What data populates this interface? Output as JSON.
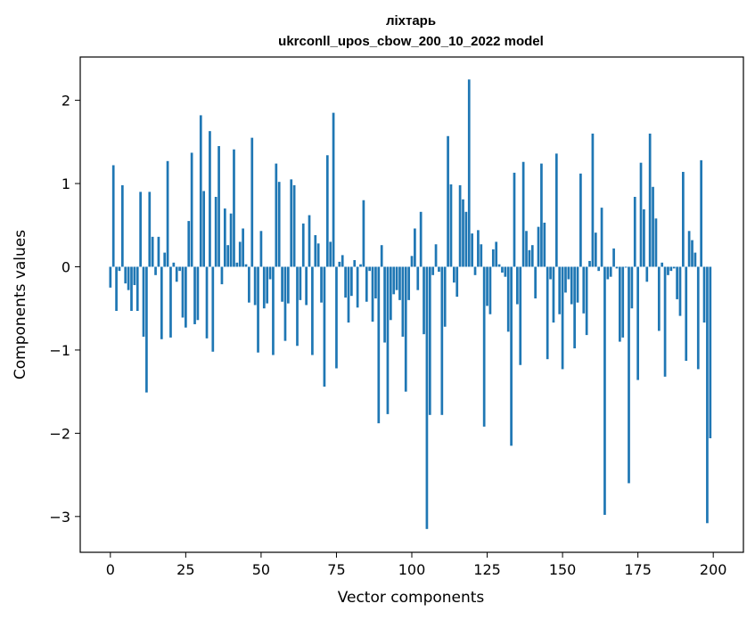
{
  "chart_data": {
    "type": "bar",
    "title": "ліхтарь",
    "subtitle": "ukrconll_upos_cbow_200_10_2022 model",
    "xlabel": "Vector components",
    "ylabel": "Components values",
    "xlim": [
      -10,
      210
    ],
    "ylim": [
      -3.43,
      2.52
    ],
    "xticks": [
      0,
      25,
      50,
      75,
      100,
      125,
      150,
      175,
      200
    ],
    "yticks": [
      -3,
      -2,
      -1,
      0,
      1,
      2
    ],
    "ytick_labels": [
      "−3",
      "−2",
      "−1",
      "0",
      "1",
      "2"
    ],
    "grid": false,
    "bar_color": "#1f77b4",
    "x": [
      0,
      1,
      2,
      3,
      4,
      5,
      6,
      7,
      8,
      9,
      10,
      11,
      12,
      13,
      14,
      15,
      16,
      17,
      18,
      19,
      20,
      21,
      22,
      23,
      24,
      25,
      26,
      27,
      28,
      29,
      30,
      31,
      32,
      33,
      34,
      35,
      36,
      37,
      38,
      39,
      40,
      41,
      42,
      43,
      44,
      45,
      46,
      47,
      48,
      49,
      50,
      51,
      52,
      53,
      54,
      55,
      56,
      57,
      58,
      59,
      60,
      61,
      62,
      63,
      64,
      65,
      66,
      67,
      68,
      69,
      70,
      71,
      72,
      73,
      74,
      75,
      76,
      77,
      78,
      79,
      80,
      81,
      82,
      83,
      84,
      85,
      86,
      87,
      88,
      89,
      90,
      91,
      92,
      93,
      94,
      95,
      96,
      97,
      98,
      99,
      100,
      101,
      102,
      103,
      104,
      105,
      106,
      107,
      108,
      109,
      110,
      111,
      112,
      113,
      114,
      115,
      116,
      117,
      118,
      119,
      120,
      121,
      122,
      123,
      124,
      125,
      126,
      127,
      128,
      129,
      130,
      131,
      132,
      133,
      134,
      135,
      136,
      137,
      138,
      139,
      140,
      141,
      142,
      143,
      144,
      145,
      146,
      147,
      148,
      149,
      150,
      151,
      152,
      153,
      154,
      155,
      156,
      157,
      158,
      159,
      160,
      161,
      162,
      163,
      164,
      165,
      166,
      167,
      168,
      169,
      170,
      171,
      172,
      173,
      174,
      175,
      176,
      177,
      178,
      179,
      180,
      181,
      182,
      183,
      184,
      185,
      186,
      187,
      188,
      189,
      190,
      191,
      192,
      193,
      194,
      195,
      196,
      197,
      198,
      199
    ],
    "values": [
      -0.25,
      1.22,
      -0.53,
      -0.05,
      0.98,
      -0.2,
      -0.28,
      -0.53,
      -0.22,
      -0.53,
      0.9,
      -0.84,
      -1.51,
      0.9,
      0.36,
      -0.1,
      0.36,
      -0.87,
      0.17,
      1.27,
      -0.85,
      0.05,
      -0.18,
      -0.05,
      -0.61,
      -0.73,
      0.55,
      1.37,
      -0.69,
      -0.64,
      1.82,
      0.91,
      -0.86,
      1.63,
      -1.02,
      0.84,
      1.45,
      -0.21,
      0.7,
      0.26,
      0.64,
      1.41,
      0.05,
      0.3,
      0.46,
      0.03,
      -0.43,
      1.55,
      -0.46,
      -1.03,
      0.43,
      -0.5,
      -0.44,
      -0.15,
      -1.06,
      1.24,
      1.02,
      -0.42,
      -0.89,
      -0.44,
      1.05,
      0.98,
      -0.95,
      -0.4,
      0.52,
      -0.46,
      0.62,
      -1.06,
      0.38,
      0.28,
      -0.43,
      -1.44,
      1.34,
      0.3,
      1.85,
      -1.22,
      0.06,
      0.14,
      -0.37,
      -0.67,
      -0.35,
      0.08,
      -0.49,
      0.03,
      0.8,
      -0.42,
      -0.05,
      -0.66,
      -0.38,
      -1.88,
      0.26,
      -0.91,
      -1.77,
      -0.64,
      -0.33,
      -0.28,
      -0.4,
      -0.84,
      -1.5,
      -0.4,
      0.13,
      0.46,
      -0.28,
      0.66,
      -0.81,
      -3.15,
      -1.78,
      -0.1,
      0.27,
      -0.06,
      -1.78,
      -0.72,
      1.57,
      0.99,
      -0.19,
      -0.36,
      0.98,
      0.81,
      0.66,
      2.25,
      0.4,
      -0.1,
      0.44,
      0.27,
      -1.92,
      -0.47,
      -0.57,
      0.21,
      0.3,
      0.03,
      -0.07,
      -0.12,
      -0.78,
      -2.15,
      1.13,
      -0.45,
      -1.18,
      1.26,
      0.43,
      0.2,
      0.26,
      -0.38,
      0.48,
      1.24,
      0.53,
      -1.11,
      -0.15,
      -0.67,
      1.36,
      -0.57,
      -1.23,
      -0.31,
      -0.15,
      -0.45,
      -0.98,
      -0.43,
      1.12,
      -0.56,
      -0.82,
      0.07,
      1.6,
      0.41,
      -0.05,
      0.71,
      -2.98,
      -0.15,
      -0.12,
      0.22,
      -0.02,
      -0.9,
      -0.85,
      -0.01,
      -2.6,
      -0.5,
      0.84,
      -1.36,
      1.25,
      0.69,
      -0.18,
      1.6,
      0.96,
      0.58,
      -0.77,
      0.05,
      -1.32,
      -0.1,
      -0.05,
      -0.02,
      -0.39,
      -0.59,
      1.14,
      -1.13,
      0.43,
      0.32,
      0.17,
      -1.23,
      1.28,
      -0.67,
      -3.08,
      -2.06
    ]
  }
}
